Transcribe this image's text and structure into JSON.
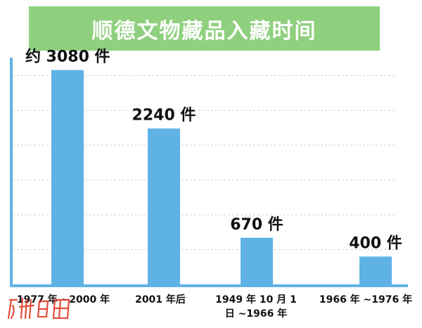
{
  "title": "顺德文物藏品入藏时间",
  "chart_data": {
    "type": "bar",
    "title": "顺德文物藏品入藏时间",
    "categories": [
      "1977 年 ~2000 年",
      "2001 年后",
      "1949 年 10 月 1 日 ~1966 年",
      "1966 年 ~1976 年"
    ],
    "category_lines": [
      [
        "1977 年 ~2000 年"
      ],
      [
        "2001 年后"
      ],
      [
        "1949 年 10 月 1",
        "日 ~1966 年"
      ],
      [
        "1966 年 ~1976 年"
      ]
    ],
    "values": [
      3080,
      2240,
      670,
      400
    ],
    "value_labels": [
      "约 3080 件",
      "2240 件",
      "670 件",
      "400 件"
    ],
    "xlabel": "",
    "ylabel": "",
    "ylim": [
      0,
      3500
    ],
    "grid": true,
    "bar_color": "#5fb2e6",
    "axis_color": "#5fb2e6",
    "grid_color": "#cfcfcf"
  },
  "colors": {
    "banner": "#8fd07f",
    "title_text": "#ffffff"
  },
  "watermark": {
    "text": "广州日报",
    "color": "#e23a2a"
  }
}
